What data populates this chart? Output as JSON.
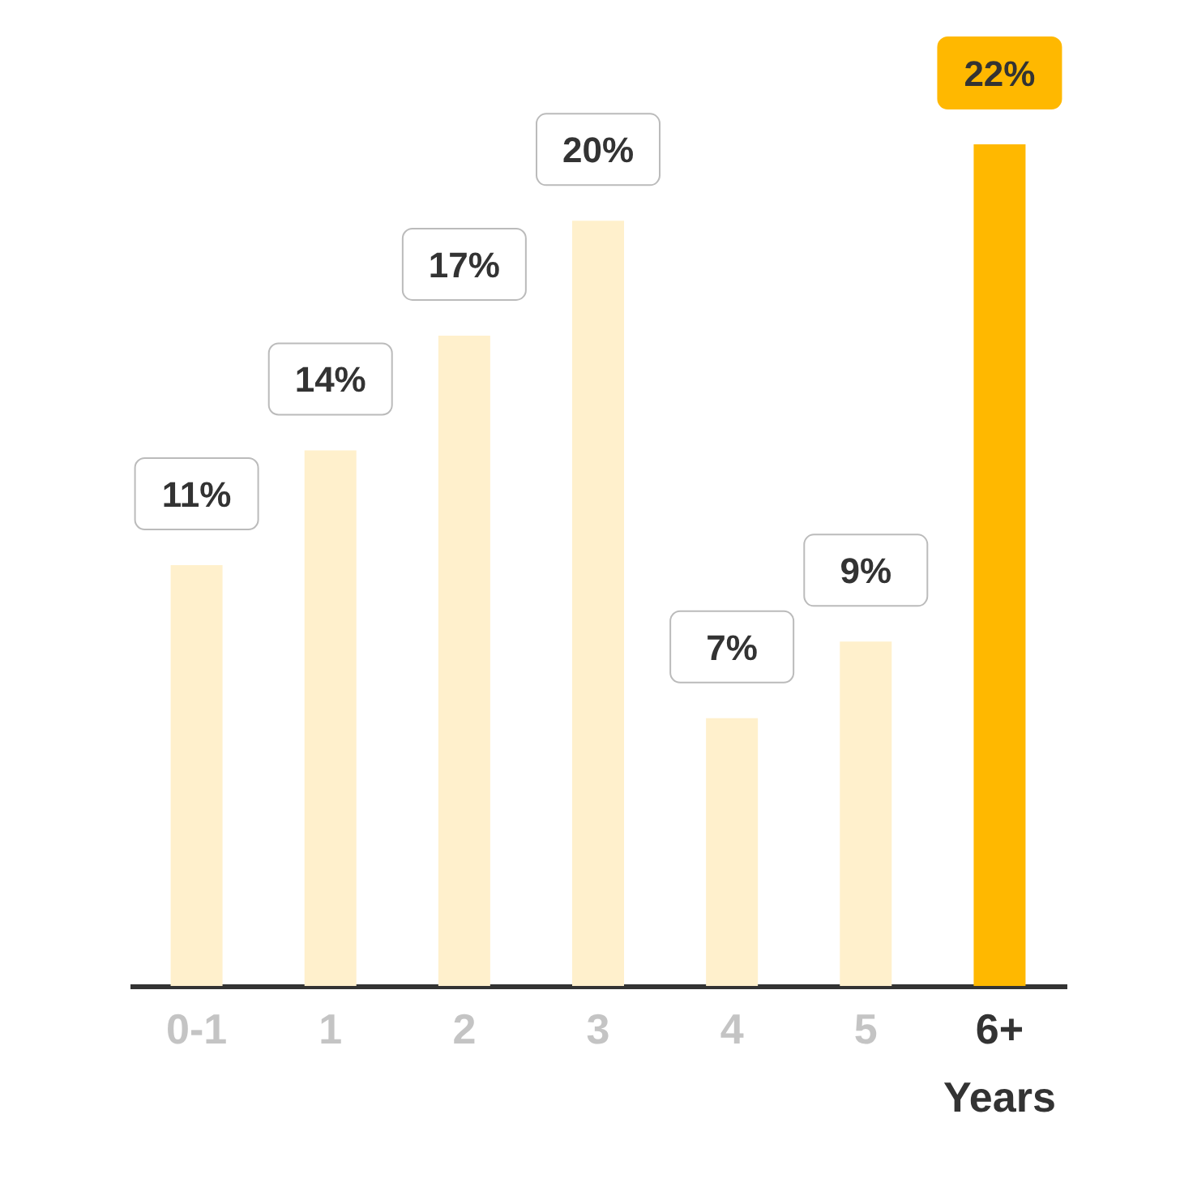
{
  "chart_data": {
    "type": "bar",
    "categories": [
      "0-1",
      "1",
      "2",
      "3",
      "4",
      "5",
      "6+ Years"
    ],
    "values": [
      11,
      14,
      17,
      20,
      7,
      9,
      22
    ],
    "value_labels": [
      "11%",
      "14%",
      "17%",
      "20%",
      "7%",
      "9%",
      "22%"
    ],
    "colors": [
      "#fff0cc",
      "#fff0cc",
      "#fff0cc",
      "#fff0cc",
      "#fff0cc",
      "#fff0cc",
      "#ffb800"
    ]
  }
}
